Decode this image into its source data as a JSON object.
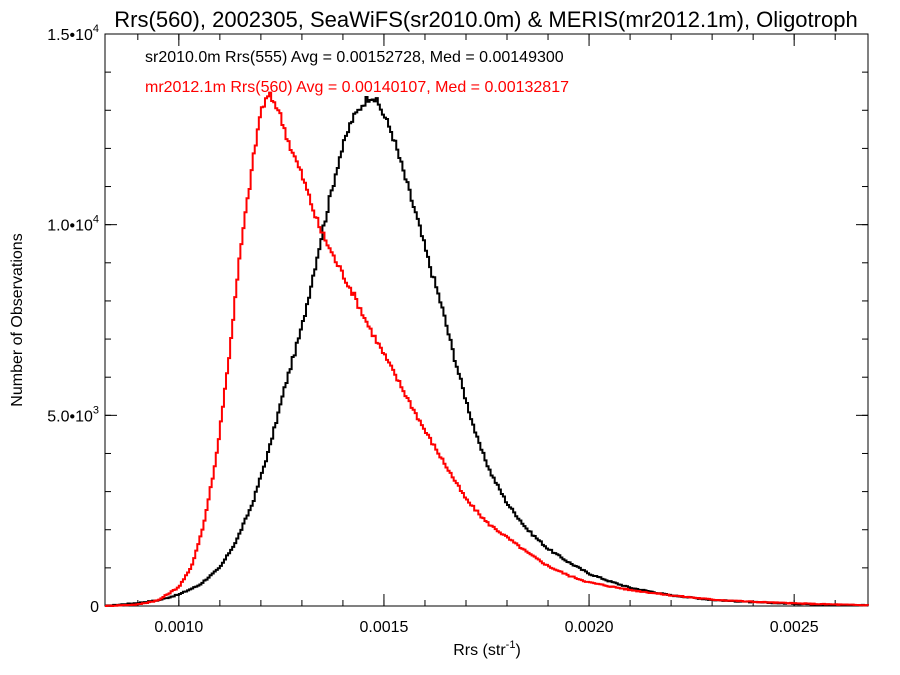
{
  "chart_data": {
    "type": "line",
    "title": "Rrs(560), 2002305, SeaWiFS(sr2010.0m) & MERIS(mr2012.1m), Oligotroph",
    "xlabel_main": "Rrs (str",
    "xlabel_sup": "-1",
    "xlabel_tail": ")",
    "ylabel": "Number of Observations",
    "xlim": [
      0.00082,
      0.00268
    ],
    "ylim": [
      0,
      15000
    ],
    "xticks": [
      {
        "value": 0.001,
        "label": "0.0010"
      },
      {
        "value": 0.0015,
        "label": "0.0015"
      },
      {
        "value": 0.002,
        "label": "0.0020"
      },
      {
        "value": 0.0025,
        "label": "0.0025"
      }
    ],
    "yticks": [
      {
        "value": 0,
        "base": "0",
        "exp": ""
      },
      {
        "value": 5000,
        "base": "5.0•10",
        "exp": "3"
      },
      {
        "value": 10000,
        "base": "1.0•10",
        "exp": "4"
      },
      {
        "value": 15000,
        "base": "1.5•10",
        "exp": "4"
      }
    ],
    "x_minor_step": 0.0001,
    "y_minor_step": 1000,
    "legend_placement": "top-left",
    "series": [
      {
        "name": "sr2010.0m Rrs(555) Avg = 0.00152728, Med = 0.00149300",
        "color": "#000000",
        "points": [
          [
            0.00082,
            0
          ],
          [
            0.0009,
            80
          ],
          [
            0.00095,
            150
          ],
          [
            0.001,
            300
          ],
          [
            0.00105,
            550
          ],
          [
            0.0011,
            1000
          ],
          [
            0.00114,
            1700
          ],
          [
            0.00118,
            2700
          ],
          [
            0.00122,
            4100
          ],
          [
            0.00126,
            5800
          ],
          [
            0.0013,
            7300
          ],
          [
            0.00133,
            8800
          ],
          [
            0.00136,
            10300
          ],
          [
            0.00139,
            11700
          ],
          [
            0.00142,
            12700
          ],
          [
            0.00145,
            13200
          ],
          [
            0.00147,
            13400
          ],
          [
            0.00149,
            13100
          ],
          [
            0.00152,
            12400
          ],
          [
            0.00155,
            11300
          ],
          [
            0.00158,
            10200
          ],
          [
            0.00161,
            9000
          ],
          [
            0.00164,
            7900
          ],
          [
            0.00167,
            6600
          ],
          [
            0.0017,
            5400
          ],
          [
            0.00173,
            4300
          ],
          [
            0.00176,
            3500
          ],
          [
            0.0018,
            2700
          ],
          [
            0.00185,
            2000
          ],
          [
            0.0019,
            1500
          ],
          [
            0.00195,
            1150
          ],
          [
            0.002,
            850
          ],
          [
            0.00205,
            650
          ],
          [
            0.0021,
            480
          ],
          [
            0.0022,
            280
          ],
          [
            0.0023,
            160
          ],
          [
            0.0024,
            100
          ],
          [
            0.0025,
            60
          ],
          [
            0.0026,
            30
          ],
          [
            0.00268,
            20
          ]
        ]
      },
      {
        "name": "mr2012.1m Rrs(560) Avg = 0.00140107, Med = 0.00132817",
        "color": "#ff0000",
        "points": [
          [
            0.00082,
            0
          ],
          [
            0.0009,
            40
          ],
          [
            0.00095,
            150
          ],
          [
            0.001,
            500
          ],
          [
            0.00103,
            1000
          ],
          [
            0.00106,
            2100
          ],
          [
            0.00109,
            3800
          ],
          [
            0.00112,
            6300
          ],
          [
            0.00115,
            9300
          ],
          [
            0.00118,
            11600
          ],
          [
            0.0012,
            13000
          ],
          [
            0.00122,
            13400
          ],
          [
            0.00124,
            13100
          ],
          [
            0.00127,
            12100
          ],
          [
            0.0013,
            11300
          ],
          [
            0.00134,
            10000
          ],
          [
            0.00138,
            9100
          ],
          [
            0.00142,
            8300
          ],
          [
            0.00146,
            7400
          ],
          [
            0.0015,
            6600
          ],
          [
            0.00155,
            5600
          ],
          [
            0.0016,
            4600
          ],
          [
            0.00165,
            3700
          ],
          [
            0.0017,
            2800
          ],
          [
            0.00175,
            2200
          ],
          [
            0.0018,
            1800
          ],
          [
            0.00185,
            1400
          ],
          [
            0.0019,
            1050
          ],
          [
            0.00195,
            800
          ],
          [
            0.002,
            620
          ],
          [
            0.0021,
            420
          ],
          [
            0.0022,
            280
          ],
          [
            0.0023,
            170
          ],
          [
            0.0024,
            110
          ],
          [
            0.0025,
            70
          ],
          [
            0.0026,
            40
          ],
          [
            0.00268,
            20
          ]
        ]
      }
    ]
  }
}
